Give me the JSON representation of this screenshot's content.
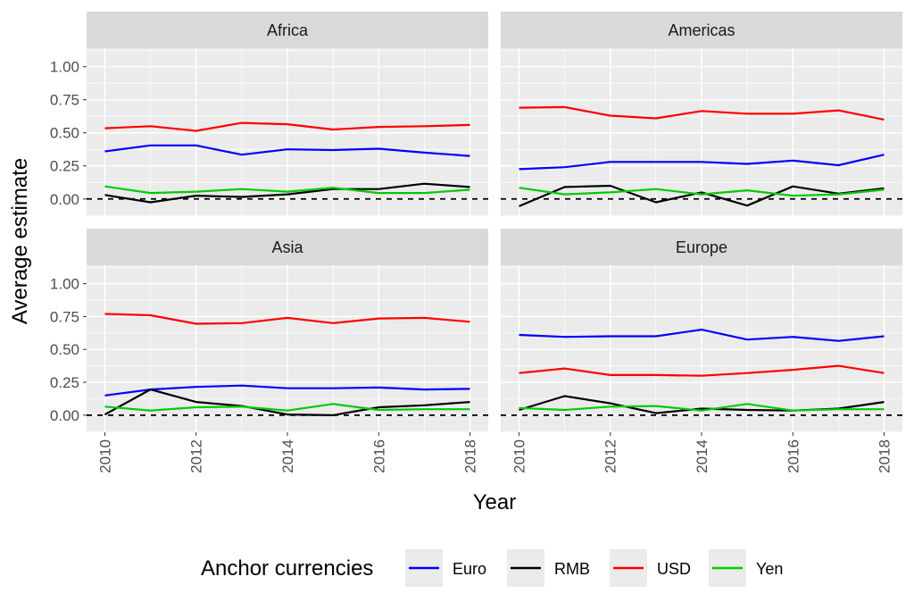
{
  "chart_data": {
    "type": "line",
    "ylabel": "Average estimate",
    "xlabel": "Year",
    "x": [
      2010,
      2011,
      2012,
      2013,
      2014,
      2015,
      2016,
      2017,
      2018
    ],
    "x_ticks": [
      "2010",
      "2012",
      "2014",
      "2016",
      "2018"
    ],
    "y_ticks": [
      "0.00",
      "0.25",
      "0.50",
      "0.75",
      "1.00"
    ],
    "ylim": [
      -0.13,
      1.14
    ],
    "xlim": [
      2009.6,
      2018.4
    ],
    "reference_line": 0,
    "legend": {
      "title": "Anchor currencies",
      "position": "bottom",
      "entries": [
        {
          "name": "Euro",
          "color": "#0000ff"
        },
        {
          "name": "RMB",
          "color": "#000000"
        },
        {
          "name": "USD",
          "color": "#ff0000"
        },
        {
          "name": "Yen",
          "color": "#00cc00"
        }
      ]
    },
    "panels": [
      {
        "title": "Africa",
        "series": [
          {
            "name": "Euro",
            "values": [
              0.36,
              0.405,
              0.405,
              0.335,
              0.375,
              0.37,
              0.38,
              0.35,
              0.325
            ]
          },
          {
            "name": "RMB",
            "values": [
              0.03,
              -0.025,
              0.025,
              0.015,
              0.035,
              0.075,
              0.075,
              0.115,
              0.09
            ]
          },
          {
            "name": "USD",
            "values": [
              0.535,
              0.55,
              0.515,
              0.575,
              0.565,
              0.525,
              0.545,
              0.55,
              0.56
            ]
          },
          {
            "name": "Yen",
            "values": [
              0.095,
              0.045,
              0.055,
              0.075,
              0.055,
              0.085,
              0.045,
              0.045,
              0.07
            ]
          }
        ]
      },
      {
        "title": "Americas",
        "series": [
          {
            "name": "Euro",
            "values": [
              0.225,
              0.24,
              0.28,
              0.28,
              0.28,
              0.265,
              0.29,
              0.255,
              0.335
            ]
          },
          {
            "name": "RMB",
            "values": [
              -0.055,
              0.09,
              0.1,
              -0.025,
              0.05,
              -0.05,
              0.095,
              0.04,
              0.08
            ]
          },
          {
            "name": "USD",
            "values": [
              0.69,
              0.695,
              0.63,
              0.61,
              0.665,
              0.645,
              0.645,
              0.67,
              0.6
            ]
          },
          {
            "name": "Yen",
            "values": [
              0.085,
              0.035,
              0.05,
              0.075,
              0.035,
              0.065,
              0.025,
              0.035,
              0.07
            ]
          }
        ]
      },
      {
        "title": "Asia",
        "series": [
          {
            "name": "Euro",
            "values": [
              0.15,
              0.195,
              0.215,
              0.225,
              0.205,
              0.205,
              0.21,
              0.195,
              0.2
            ]
          },
          {
            "name": "RMB",
            "values": [
              0.005,
              0.195,
              0.1,
              0.07,
              0.005,
              0.0,
              0.06,
              0.075,
              0.1
            ]
          },
          {
            "name": "USD",
            "values": [
              0.77,
              0.76,
              0.695,
              0.7,
              0.74,
              0.7,
              0.735,
              0.74,
              0.71
            ]
          },
          {
            "name": "Yen",
            "values": [
              0.065,
              0.035,
              0.06,
              0.065,
              0.035,
              0.085,
              0.04,
              0.045,
              0.045
            ]
          }
        ]
      },
      {
        "title": "Europe",
        "series": [
          {
            "name": "Euro",
            "values": [
              0.61,
              0.595,
              0.6,
              0.6,
              0.65,
              0.575,
              0.595,
              0.565,
              0.6
            ]
          },
          {
            "name": "RMB",
            "values": [
              0.04,
              0.145,
              0.09,
              0.015,
              0.05,
              0.04,
              0.035,
              0.05,
              0.1
            ]
          },
          {
            "name": "USD",
            "values": [
              0.32,
              0.355,
              0.305,
              0.305,
              0.3,
              0.32,
              0.345,
              0.375,
              0.32
            ]
          },
          {
            "name": "Yen",
            "values": [
              0.055,
              0.04,
              0.065,
              0.07,
              0.035,
              0.085,
              0.035,
              0.045,
              0.045
            ]
          }
        ]
      }
    ]
  }
}
